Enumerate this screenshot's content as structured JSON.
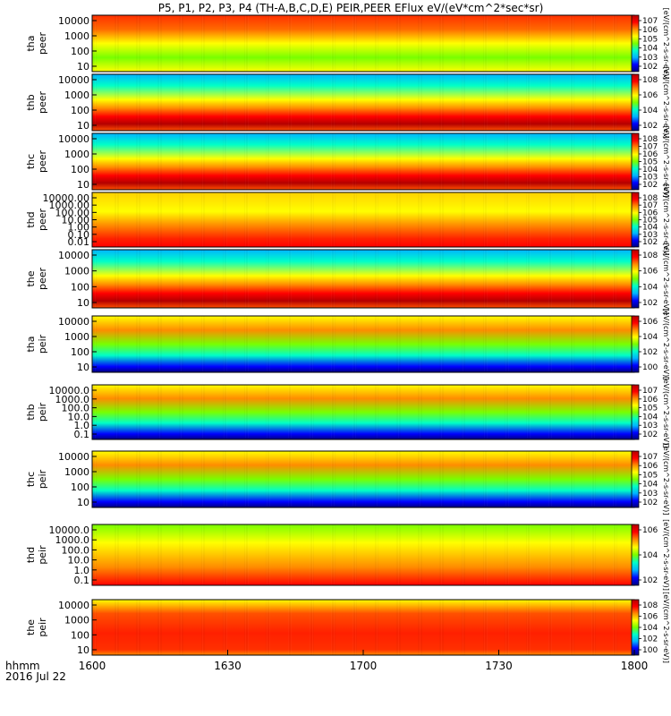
{
  "chart_data": {
    "type": "heatmap",
    "title": "P5, P1, P2, P3, P4 (TH-A,B,C,D,E) PEIR,PEER EFlux eV/(eV*cm^2*sec*sr)",
    "time_axis": {
      "tick_labels": [
        "1600",
        "1630",
        "1700",
        "1730",
        "1800"
      ],
      "label_line1": "hhmm",
      "label_line2": "2016 Jul 22"
    },
    "colorbar_label": "[eV/(cm^2-s-sr-eV)]",
    "colormap": [
      "#00007f",
      "#0000ff",
      "#00b4ff",
      "#00ffc8",
      "#78ff00",
      "#ffff00",
      "#ff8c00",
      "#ff0000",
      "#b40000"
    ],
    "panels": [
      {
        "probe": "tha",
        "species": "peer",
        "ytick_labels": [
          "10000",
          "1000",
          "100",
          "10"
        ],
        "cbar_tick_labels": [
          "10^7",
          "10^6",
          "10^5",
          "10^4",
          "10^3",
          "10^2"
        ]
      },
      {
        "probe": "thb",
        "species": "peer",
        "ytick_labels": [
          "10000",
          "1000",
          "100",
          "10"
        ],
        "cbar_tick_labels": [
          "10^8",
          "10^6",
          "10^4",
          "10^2"
        ]
      },
      {
        "probe": "thc",
        "species": "peer",
        "ytick_labels": [
          "10000",
          "1000",
          "100",
          "10"
        ],
        "cbar_tick_labels": [
          "10^8",
          "10^7",
          "10^6",
          "10^5",
          "10^4",
          "10^3",
          "10^2"
        ]
      },
      {
        "probe": "thd",
        "species": "peer",
        "ytick_labels": [
          "10000.00",
          "1000.00",
          "100.00",
          "10.00",
          "1.00",
          "0.10",
          "0.01"
        ],
        "cbar_tick_labels": [
          "10^8",
          "10^7",
          "10^6",
          "10^5",
          "10^4",
          "10^3",
          "10^2"
        ]
      },
      {
        "probe": "the",
        "species": "peer",
        "ytick_labels": [
          "10000",
          "1000",
          "100",
          "10"
        ],
        "cbar_tick_labels": [
          "10^8",
          "10^6",
          "10^4",
          "10^2"
        ]
      },
      {
        "probe": "tha",
        "species": "peir",
        "ytick_labels": [
          "10000",
          "1000",
          "100",
          "10"
        ],
        "cbar_tick_labels": [
          "10^6",
          "10^4",
          "10^2",
          "10^0"
        ]
      },
      {
        "probe": "thb",
        "species": "peir",
        "ytick_labels": [
          "10000.0",
          "1000.0",
          "100.0",
          "10.0",
          "1.0",
          "0.1"
        ],
        "cbar_tick_labels": [
          "10^7",
          "10^6",
          "10^5",
          "10^4",
          "10^3",
          "10^2"
        ]
      },
      {
        "probe": "thc",
        "species": "peir",
        "ytick_labels": [
          "10000",
          "1000",
          "100",
          "10"
        ],
        "cbar_tick_labels": [
          "10^7",
          "10^6",
          "10^5",
          "10^4",
          "10^3",
          "10^2"
        ]
      },
      {
        "probe": "thd",
        "species": "peir",
        "ytick_labels": [
          "10000.0",
          "1000.0",
          "100.0",
          "10.0",
          "1.0",
          "0.1"
        ],
        "cbar_tick_labels": [
          "10^6",
          "10^4",
          "10^2"
        ]
      },
      {
        "probe": "the",
        "species": "peir",
        "ytick_labels": [
          "10000",
          "1000",
          "100",
          "10"
        ],
        "cbar_tick_labels": [
          "10^8",
          "10^6",
          "10^4",
          "10^2",
          "10^0"
        ]
      }
    ]
  }
}
